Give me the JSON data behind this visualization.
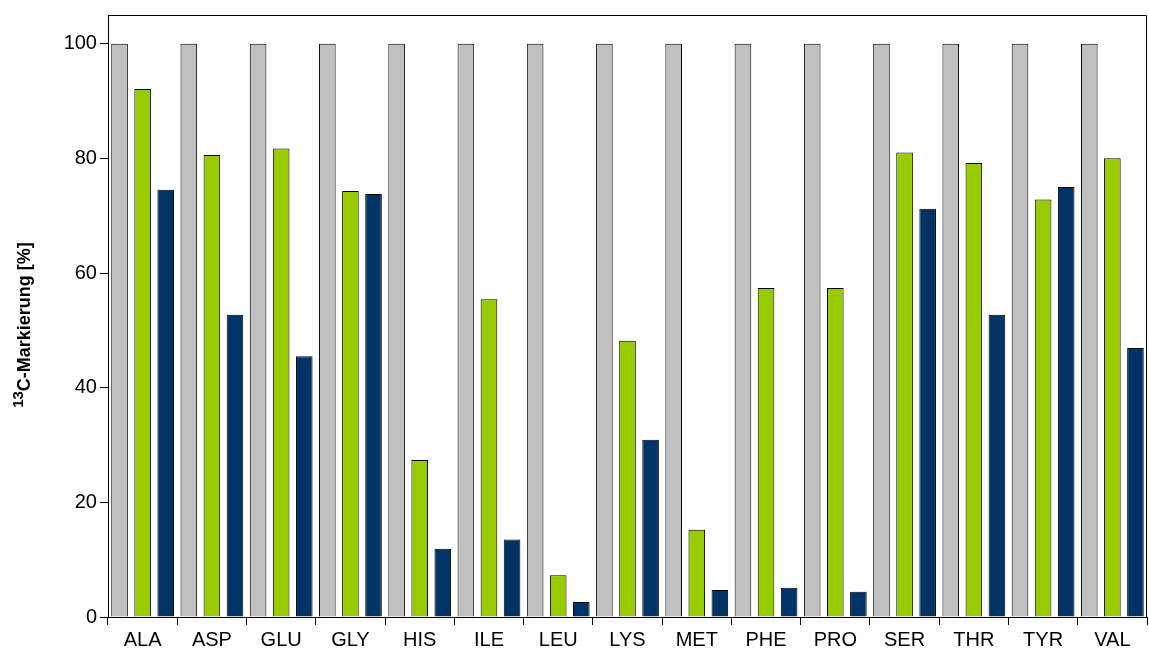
{
  "chart_data": {
    "type": "bar",
    "ylabel": "$^{13}$C-Markierung [%]",
    "categories": [
      "ALA",
      "ASP",
      "GLU",
      "GLY",
      "HIS",
      "ILE",
      "LEU",
      "LYS",
      "MET",
      "PHE",
      "PRO",
      "SER",
      "THR",
      "TYR",
      "VAL"
    ],
    "series": [
      {
        "color": "#c0c0c0",
        "values": [
          100,
          100,
          100,
          100,
          100,
          100,
          100,
          100,
          100,
          100,
          100,
          100,
          100,
          100,
          100
        ]
      },
      {
        "color": "#99cc00",
        "values": [
          92.1,
          80.6,
          81.7,
          74.3,
          27.4,
          55.4,
          7.3,
          48.2,
          15.2,
          57.4,
          57.4,
          81,
          79.2,
          72.8,
          80
        ]
      },
      {
        "color": "#003366",
        "values": [
          74.5,
          52.7,
          45.5,
          73.8,
          11.9,
          13.5,
          2.6,
          30.9,
          4.7,
          5.1,
          4.4,
          71.2,
          52.7,
          75,
          46.9
        ]
      }
    ],
    "ylim": [
      0,
      105
    ],
    "yticks": [
      0,
      20,
      40,
      60,
      80,
      100
    ],
    "grid": false,
    "legend": false
  }
}
